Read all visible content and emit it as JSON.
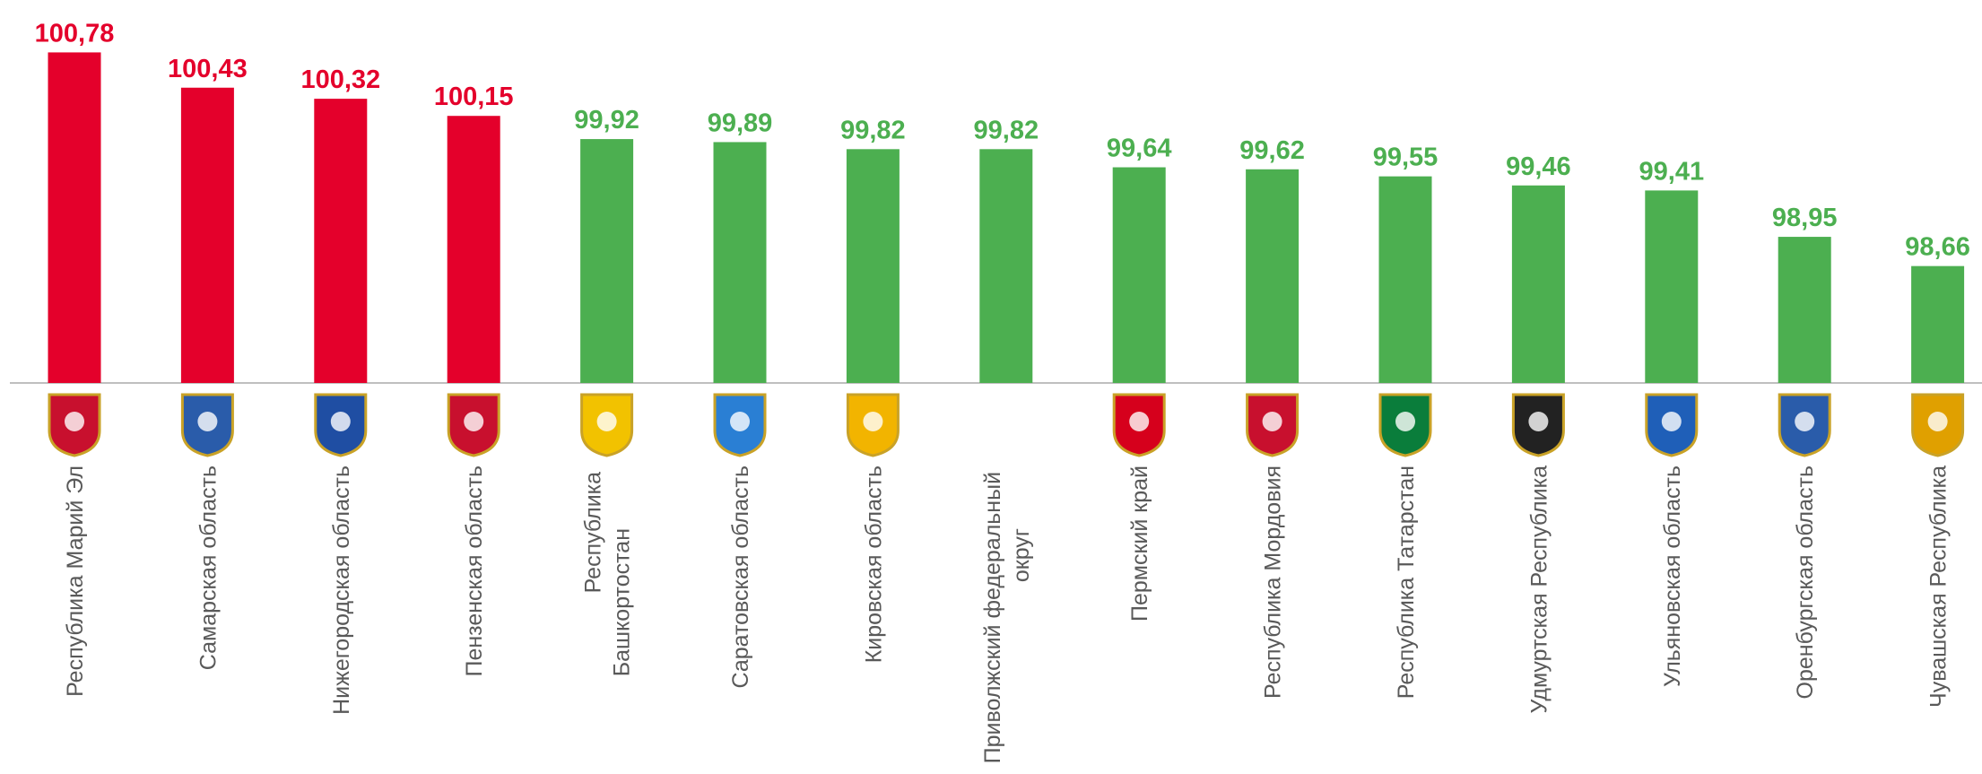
{
  "chart_data": {
    "type": "bar",
    "categories": [
      "Республика Марий Эл",
      "Самарская область",
      "Нижегородская область",
      "Пензенская область",
      "Республика Башкортостан",
      "Саратовская область",
      "Кировская область",
      "Приволжский федеральный округ",
      "Пермский край",
      "Республика Мордовия",
      "Республика Татарстан",
      "Удмуртская Республика",
      "Ульяновская область",
      "Оренбургская область",
      "Чувашская Республика"
    ],
    "values": [
      100.78,
      100.43,
      100.32,
      100.15,
      99.92,
      99.89,
      99.82,
      99.82,
      99.64,
      99.62,
      99.55,
      99.46,
      99.41,
      98.95,
      98.66
    ],
    "value_labels": [
      "100,78",
      "100,43",
      "100,32",
      "100,15",
      "99,92",
      "99,89",
      "99,82",
      "99,82",
      "99,64",
      "99,62",
      "99,55",
      "99,46",
      "99,41",
      "98,95",
      "98,66"
    ],
    "colors": [
      "#e4002b",
      "#e4002b",
      "#e4002b",
      "#e4002b",
      "#4caf50",
      "#4caf50",
      "#4caf50",
      "#4caf50",
      "#4caf50",
      "#4caf50",
      "#4caf50",
      "#4caf50",
      "#4caf50",
      "#4caf50",
      "#4caf50"
    ],
    "ylim": [
      97.5,
      101.3
    ]
  }
}
